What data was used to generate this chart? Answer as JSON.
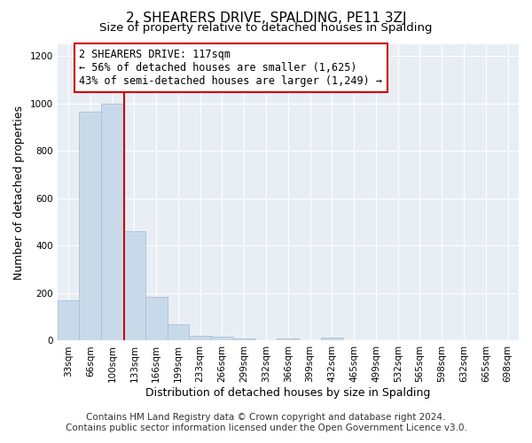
{
  "title": "2, SHEARERS DRIVE, SPALDING, PE11 3ZJ",
  "subtitle": "Size of property relative to detached houses in Spalding",
  "xlabel": "Distribution of detached houses by size in Spalding",
  "ylabel": "Number of detached properties",
  "bin_labels": [
    "33sqm",
    "66sqm",
    "100sqm",
    "133sqm",
    "166sqm",
    "199sqm",
    "233sqm",
    "266sqm",
    "299sqm",
    "332sqm",
    "366sqm",
    "399sqm",
    "432sqm",
    "465sqm",
    "499sqm",
    "532sqm",
    "565sqm",
    "598sqm",
    "632sqm",
    "665sqm",
    "698sqm"
  ],
  "bar_heights": [
    170,
    965,
    1000,
    460,
    185,
    70,
    22,
    15,
    10,
    0,
    10,
    0,
    12,
    0,
    0,
    0,
    0,
    0,
    0,
    0,
    0
  ],
  "bar_color": "#c8daea",
  "bar_edgecolor": "#a8c0d6",
  "vline_x": 2.55,
  "vline_color": "#cc0000",
  "annotation_text": "2 SHEARERS DRIVE: 117sqm\n← 56% of detached houses are smaller (1,625)\n43% of semi-detached houses are larger (1,249) →",
  "annotation_box_edgecolor": "#cc0000",
  "annotation_box_facecolor": "#ffffff",
  "ylim": [
    0,
    1250
  ],
  "yticks": [
    0,
    200,
    400,
    600,
    800,
    1000,
    1200
  ],
  "footnote1": "Contains HM Land Registry data © Crown copyright and database right 2024.",
  "footnote2": "Contains public sector information licensed under the Open Government Licence v3.0.",
  "background_color": "#ffffff",
  "plot_bg_color": "#e8eef4",
  "grid_color": "#ffffff",
  "title_fontsize": 11,
  "subtitle_fontsize": 9.5,
  "axis_label_fontsize": 9,
  "tick_fontsize": 7.5,
  "annotation_fontsize": 8.5,
  "footnote_fontsize": 7.5
}
